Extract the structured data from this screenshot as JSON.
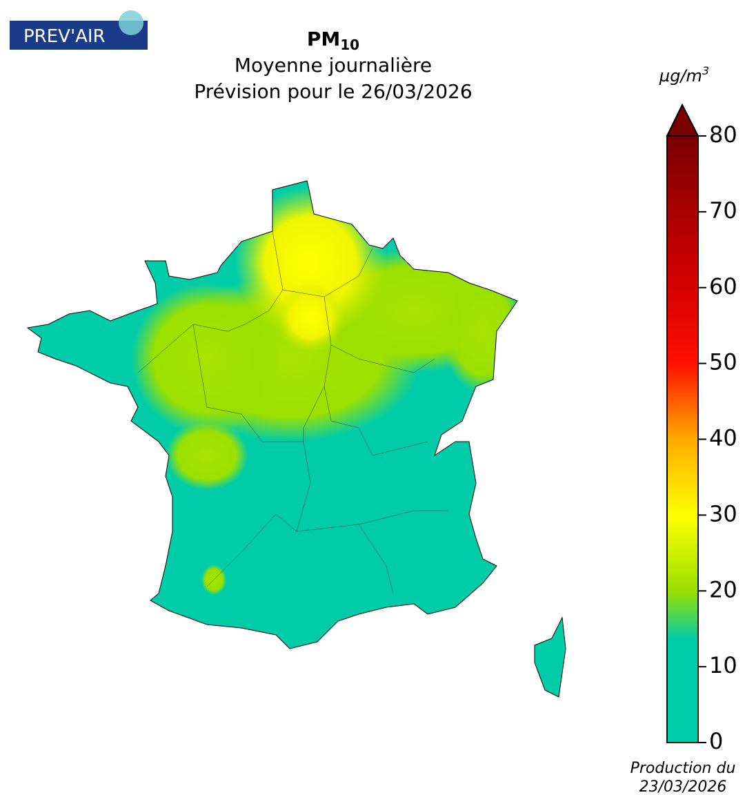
{
  "logo": "PREV'AIR",
  "title": {
    "pollutant": {
      "name": "PM",
      "subscript": "10"
    },
    "line2": "Moyenne journalière",
    "line3": "Prévision pour le 26/03/2026"
  },
  "colorbar": {
    "unit": {
      "base": "µg/m",
      "superscript": "3"
    },
    "lim": [
      0,
      80
    ],
    "ticks": [
      0,
      10,
      20,
      30,
      40,
      50,
      60,
      70,
      80
    ]
  },
  "footer": {
    "line1": "Production du",
    "line2": "23/03/2026"
  }
}
